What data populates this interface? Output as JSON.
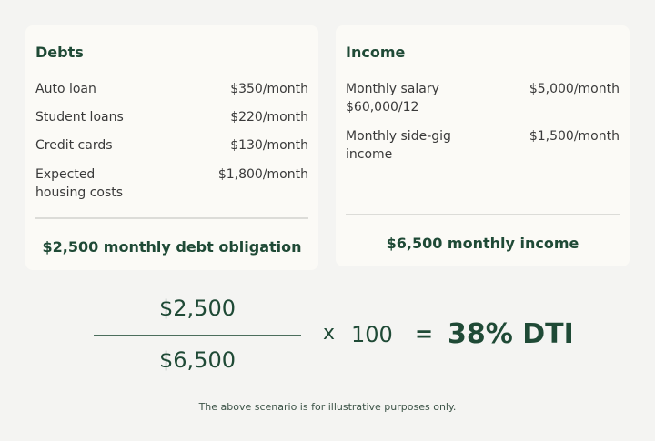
{
  "debts": {
    "title": "Debts",
    "items": [
      {
        "label": "Auto loan",
        "value": "$350/month"
      },
      {
        "label": "Student loans",
        "value": "$220/month"
      },
      {
        "label": "Credit cards",
        "value": "$130/month"
      },
      {
        "label": "Expected housing costs",
        "value": "$1,800/month"
      }
    ],
    "total": "$2,500 monthly debt obligation"
  },
  "income": {
    "title": "Income",
    "items": [
      {
        "label": "Monthly salary $60,000/12",
        "value": "$5,000/month"
      },
      {
        "label": "Monthly side-gig income",
        "value": "$1,500/month"
      }
    ],
    "total": "$6,500 monthly income"
  },
  "formula": {
    "numerator": "$2,500",
    "denominator": "$6,500",
    "times": "x",
    "multiplier": "100",
    "equals": "=",
    "result": "38% DTI"
  },
  "footnote": "The above scenario is for illustrative purposes only.",
  "colors": {
    "accent": "#1f4a36",
    "background": "#f4f4f2",
    "card": "#fbfaf6"
  }
}
